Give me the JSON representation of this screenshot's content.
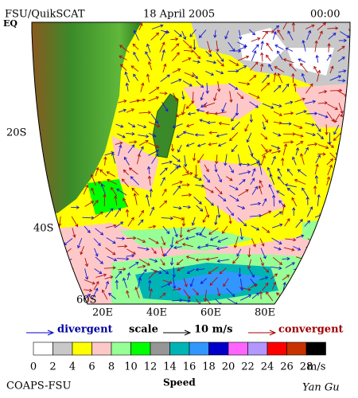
{
  "header": {
    "title": "FSU/QuikSCAT",
    "date": "18 April 2005",
    "time": "00:00"
  },
  "lat_labels": [
    "EQ",
    "20S",
    "40S",
    "60S"
  ],
  "lon_labels": [
    "20E",
    "40E",
    "60E",
    "80E"
  ],
  "legend": {
    "divergent": "divergent",
    "scale": "scale",
    "scale_value": "10 m/s",
    "convergent": "convergent"
  },
  "colorbar": {
    "labels": [
      "0",
      "2",
      "4",
      "6",
      "8",
      "10",
      "12",
      "14",
      "16",
      "18",
      "20",
      "22",
      "24",
      "26",
      "28"
    ],
    "colors": [
      "#ffffff",
      "#c8c8c8",
      "#ffff00",
      "#ffc8c8",
      "#96ff96",
      "#00ff00",
      "#969696",
      "#00b4b4",
      "#3296ff",
      "#0000c8",
      "#ff64ff",
      "#b496ff",
      "#ff0000",
      "#c83200",
      "#000000"
    ],
    "unit": "m/s",
    "title": "Speed"
  },
  "footer": {
    "left": "COAPS-FSU",
    "right": "Yan Gu"
  }
}
